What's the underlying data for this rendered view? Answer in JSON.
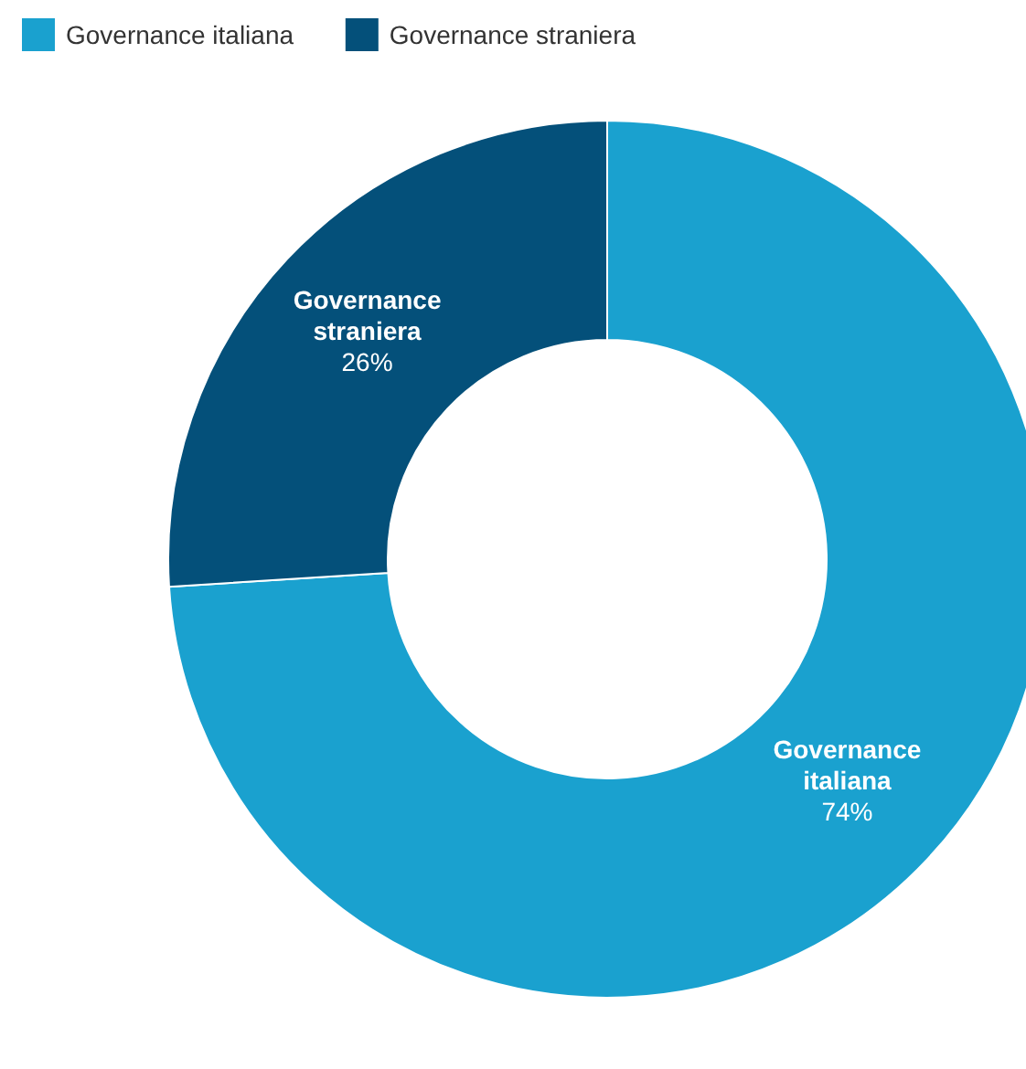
{
  "chart_data": {
    "type": "donut",
    "categories": [
      "Governance italiana",
      "Governance straniera"
    ],
    "values": [
      74,
      26
    ],
    "colors": [
      "#1aa1cf",
      "#04507a"
    ],
    "value_labels": [
      "74%",
      "26%"
    ],
    "legend": "top left"
  }
}
